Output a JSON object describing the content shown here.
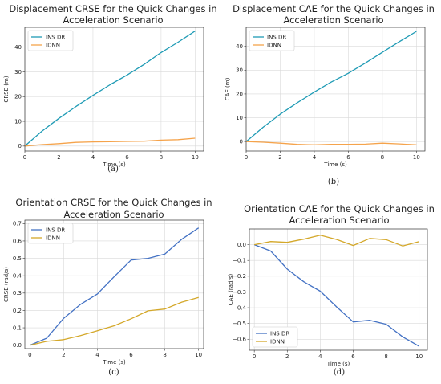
{
  "chart_data": [
    {
      "id": "a",
      "type": "line",
      "caption": "(a)",
      "title": [
        "Displacement CRSE for the Quick Changes in",
        "Acceleration Scenario"
      ],
      "xlabel": "Time (s)",
      "ylabel": "CRSE (m)",
      "xlim": [
        0,
        10.5
      ],
      "ylim": [
        -2,
        48
      ],
      "xticks": [
        0,
        2,
        4,
        6,
        8,
        10
      ],
      "yticks": [
        0,
        10,
        20,
        30,
        40
      ],
      "grid": true,
      "legend_position": "upper-left",
      "series": [
        {
          "name": "INS DR",
          "color": "#1f9bb5",
          "x": [
            0,
            1,
            2,
            3,
            4,
            5,
            6,
            7,
            8,
            9,
            10
          ],
          "y": [
            0,
            6,
            11.2,
            16,
            20.5,
            24.8,
            28.7,
            33,
            37.8,
            42,
            46.5
          ]
        },
        {
          "name": "IDNN",
          "color": "#f5a34b",
          "x": [
            0,
            1,
            2,
            3,
            4,
            5,
            6,
            7,
            8,
            9,
            10
          ],
          "y": [
            0,
            0.6,
            1.0,
            1.5,
            1.7,
            1.8,
            1.9,
            2.0,
            2.4,
            2.6,
            3.2
          ]
        }
      ]
    },
    {
      "id": "b",
      "type": "line",
      "caption": "(b)",
      "title": [
        "Displacement CAE for the Quick Changes in",
        "Acceleration Scenario"
      ],
      "xlabel": "Time (s)",
      "ylabel": "CAE (m)",
      "xlim": [
        0,
        10.5
      ],
      "ylim": [
        -4,
        48
      ],
      "xticks": [
        0,
        2,
        4,
        6,
        8,
        10
      ],
      "yticks": [
        0,
        10,
        20,
        30,
        40
      ],
      "grid": true,
      "legend_position": "upper-left",
      "series": [
        {
          "name": "INS DR",
          "color": "#1f9bb5",
          "x": [
            0,
            1,
            2,
            3,
            4,
            5,
            6,
            7,
            8,
            9,
            10
          ],
          "y": [
            0,
            6,
            11.5,
            16.3,
            20.8,
            25,
            28.7,
            33,
            37.5,
            42,
            46.3
          ]
        },
        {
          "name": "IDNN",
          "color": "#f5a34b",
          "x": [
            0,
            1,
            2,
            3,
            4,
            5,
            6,
            7,
            8,
            9,
            10
          ],
          "y": [
            0,
            -0.3,
            -0.7,
            -1.2,
            -1.4,
            -1.2,
            -1.2,
            -1.1,
            -0.7,
            -1.0,
            -1.4
          ]
        }
      ]
    },
    {
      "id": "c",
      "type": "line",
      "caption": "(c)",
      "title": [
        "Orientation CRSE for the Quick Changes in",
        "Acceleration Scenario"
      ],
      "xlabel": "Time (s)",
      "ylabel": "CRSE (rad/s)",
      "xlim": [
        -0.3,
        10.3
      ],
      "ylim": [
        -0.02,
        0.72
      ],
      "xticks": [
        0,
        2,
        4,
        6,
        8,
        10
      ],
      "yticks": [
        0.0,
        0.1,
        0.2,
        0.3,
        0.4,
        0.5,
        0.6,
        0.7
      ],
      "ytick_labels": [
        "0.0",
        "0.1",
        "0.2",
        "0.3",
        "0.4",
        "0.5",
        "0.6",
        "0.7"
      ],
      "grid": true,
      "legend_position": "upper-left",
      "series": [
        {
          "name": "INS DR",
          "color": "#4472c4",
          "x": [
            0,
            1,
            2,
            3,
            4,
            5,
            6,
            7,
            8,
            9,
            10
          ],
          "y": [
            0,
            0.04,
            0.155,
            0.235,
            0.295,
            0.395,
            0.49,
            0.5,
            0.525,
            0.61,
            0.675
          ]
        },
        {
          "name": "IDNN",
          "color": "#d4a82a",
          "x": [
            0,
            1,
            2,
            3,
            4,
            5,
            6,
            7,
            8,
            9,
            10
          ],
          "y": [
            0,
            0.022,
            0.032,
            0.055,
            0.083,
            0.112,
            0.152,
            0.198,
            0.208,
            0.248,
            0.275
          ]
        }
      ]
    },
    {
      "id": "d",
      "type": "line",
      "caption": "(d)",
      "title": [
        "Orientation CAE for the Quick Changes in",
        "Acceleration Scenario"
      ],
      "xlabel": "Time (s)",
      "ylabel": "CAE (rad/s)",
      "xlim": [
        -0.3,
        10.5
      ],
      "ylim": [
        -0.67,
        0.1
      ],
      "xticks": [
        0,
        2,
        4,
        6,
        8,
        10
      ],
      "yticks": [
        0.0,
        -0.1,
        -0.2,
        -0.3,
        -0.4,
        -0.5,
        -0.6
      ],
      "ytick_labels": [
        "0.0",
        "−0.1",
        "−0.2",
        "−0.3",
        "−0.4",
        "−0.5",
        "−0.6"
      ],
      "grid": true,
      "legend_position": "lower-left",
      "series": [
        {
          "name": "INS DR",
          "color": "#4472c4",
          "x": [
            0,
            1,
            2,
            3,
            4,
            5,
            6,
            7,
            8,
            9,
            10
          ],
          "y": [
            0,
            -0.04,
            -0.155,
            -0.235,
            -0.295,
            -0.395,
            -0.49,
            -0.48,
            -0.505,
            -0.585,
            -0.645
          ]
        },
        {
          "name": "IDNN",
          "color": "#d4a82a",
          "x": [
            0,
            1,
            2,
            3,
            4,
            5,
            6,
            7,
            8,
            9,
            10
          ],
          "y": [
            0,
            0.02,
            0.015,
            0.035,
            0.06,
            0.033,
            -0.005,
            0.04,
            0.032,
            -0.008,
            0.02
          ]
        }
      ]
    }
  ]
}
